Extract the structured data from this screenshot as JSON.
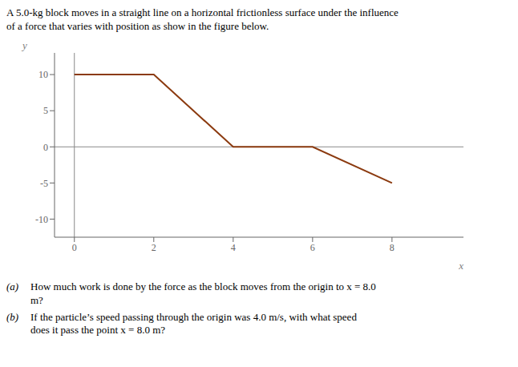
{
  "chart_data": {
    "type": "line",
    "title": "A 5.0-kg block moves in a straight line on a horizontal frictionless surface under the influence\nof a force that varies with position as show in the figure below.",
    "x": [
      0,
      2,
      4,
      6,
      8
    ],
    "values": [
      10,
      10,
      0,
      0,
      -5
    ],
    "color": "#8B3A0F",
    "xlim": [
      -0.5,
      9.8
    ],
    "ylim": [
      -12.5,
      13.0
    ],
    "xticks": [
      0,
      2,
      4,
      6,
      8
    ],
    "yticks": [
      -10,
      -5,
      0,
      5,
      10
    ],
    "xlabel": "x",
    "ylabel": "y",
    "grid": false,
    "annotations": [
      {
        "label": "(a)",
        "text": "How much work is done by the force as the block moves from the origin to x = 8.0\nm?"
      },
      {
        "label": "(b)",
        "text": "If the particle’s speed passing through the origin was 4.0 m/s, with what speed\ndoes it pass the point x = 8.0 m?"
      }
    ]
  }
}
